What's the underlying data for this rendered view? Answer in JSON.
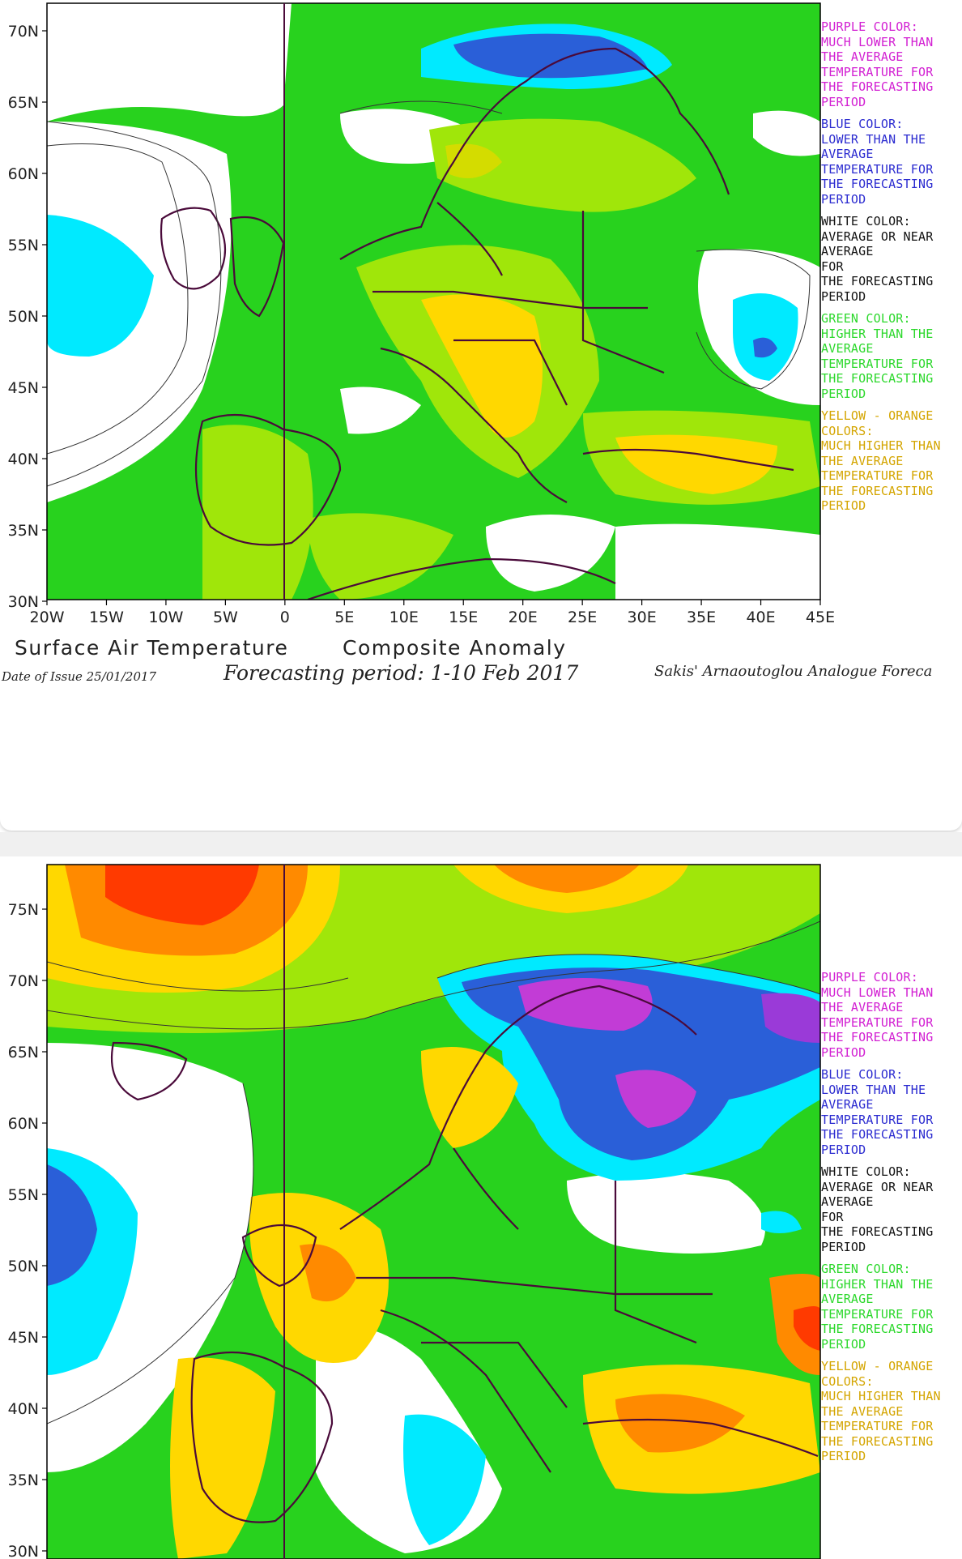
{
  "colors": {
    "purple": "#c23cd6",
    "blue": "#2a5fd8",
    "cyan": "#00eaff",
    "white": "#ffffff",
    "green": "#28d21e",
    "lightgreen": "#a0e60a",
    "yellowgreen": "#d4dc00",
    "yellow": "#ffd800",
    "orange": "#ff8a00",
    "red": "#ff3a00",
    "border": "#4a0a3a"
  },
  "map1": {
    "lat_labels": [
      "70N",
      "65N",
      "60N",
      "55N",
      "50N",
      "45N",
      "40N",
      "35N",
      "30N"
    ],
    "lon_labels": [
      "20W",
      "15W",
      "10W",
      "5W",
      "0",
      "5E",
      "10E",
      "15E",
      "20E",
      "25E",
      "30E",
      "35E",
      "40E",
      "45E"
    ],
    "legend": {
      "purple": "PURPLE COLOR:\nMUCH LOWER THAN\nTHE AVERAGE\nTEMPERATURE FOR\nTHE FORECASTING\nPERIOD",
      "blue": "BLUE COLOR:\nLOWER THAN THE\nAVERAGE\nTEMPERATURE FOR\nTHE FORECASTING\nPERIOD",
      "white": "WHITE COLOR:\nAVERAGE OR NEAR\nAVERAGE\nFOR\nTHE FORECASTING\nPERIOD",
      "green": "GREEN COLOR:\nHIGHER THAN THE\nAVERAGE\nTEMPERATURE FOR\nTHE FORECASTING\nPERIOD",
      "yellow": "YELLOW - ORANGE\nCOLORS:\nMUCH HIGHER THAN\nTHE AVERAGE\nTEMPERATURE FOR\nTHE FORECASTING\nPERIOD"
    },
    "footer": {
      "variable": "Surface Air Temperature",
      "composite": "Composite Anomaly",
      "date_of_issue": "Date of Issue 25/01/2017",
      "period": "Forecasting period: 1-10 Feb 2017",
      "credit": "Sakis' Arnaoutoglou Analogue Foreca"
    }
  },
  "map2": {
    "lat_labels": [
      "75N",
      "70N",
      "65N",
      "60N",
      "55N",
      "50N",
      "45N",
      "40N",
      "35N",
      "30N"
    ],
    "legend": {
      "purple": "PURPLE COLOR:\nMUCH LOWER THAN\nTHE AVERAGE\nTEMPERATURE FOR\nTHE FORECASTING\nPERIOD",
      "blue": "BLUE COLOR:\nLOWER THAN THE\nAVERAGE\nTEMPERATURE FOR\nTHE FORECASTING\nPERIOD",
      "white": "WHITE COLOR:\nAVERAGE OR NEAR\nAVERAGE\nFOR\nTHE FORECASTING\nPERIOD",
      "green": "GREEN COLOR:\nHIGHER THAN THE\nAVERAGE\nTEMPERATURE FOR\nTHE FORECASTING\nPERIOD",
      "yellow": "YELLOW - ORANGE\nCOLORS:\nMUCH HIGHER THAN\nTHE AVERAGE\nTEMPERATURE FOR\nTHE FORECASTING\nPERIOD"
    }
  }
}
